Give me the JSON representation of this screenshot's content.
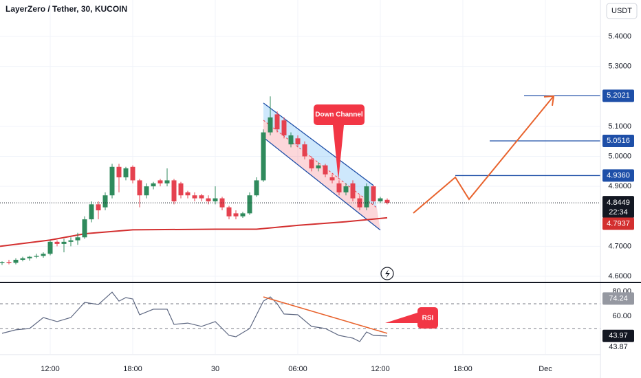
{
  "chart_data": [
    {
      "type": "candlestick",
      "title": "LayerZero / Tether, 30, KUCOIN",
      "currency": "USDT",
      "up_color": "#2f8a5c",
      "down_color": "#e5414f",
      "grid": true,
      "xlim": [
        -7.3,
        80
      ],
      "ylim": [
        4.5817,
        5.5215
      ],
      "xticks": [
        {
          "value": 0,
          "label": "12:00"
        },
        {
          "value": 12,
          "label": "18:00"
        },
        {
          "value": 24,
          "label": "30"
        },
        {
          "value": 36,
          "label": "06:00"
        },
        {
          "value": 48,
          "label": "12:00"
        },
        {
          "value": 60,
          "label": "18:00"
        },
        {
          "value": 72,
          "label": "Dec"
        }
      ],
      "yticks": [
        {
          "value": 5.4,
          "label": "5.4000"
        },
        {
          "value": 5.3,
          "label": "5.3000"
        },
        {
          "value": 5.1,
          "label": "5.1000"
        },
        {
          "value": 5.0,
          "label": "5.0000"
        },
        {
          "value": 4.9,
          "label": "4.9000"
        },
        {
          "value": 4.7,
          "label": "4.7000"
        },
        {
          "value": 4.6,
          "label": "4.6000"
        }
      ],
      "x": [
        -7,
        -6,
        -5,
        -4,
        -3,
        -2,
        -1,
        0,
        1,
        2,
        3,
        4,
        5,
        6,
        7,
        8,
        9,
        10,
        11,
        12,
        13,
        14,
        15,
        16,
        17,
        18,
        19,
        20,
        21,
        22,
        23,
        24,
        25,
        26,
        27,
        28,
        29,
        30,
        31,
        32,
        33,
        34,
        35,
        36,
        37,
        38,
        39,
        40,
        41,
        42,
        43,
        44,
        45,
        46,
        47,
        48,
        49
      ],
      "open": [
        4.645,
        4.648,
        4.645,
        4.655,
        4.66,
        4.665,
        4.668,
        4.675,
        4.715,
        4.708,
        4.715,
        4.72,
        4.73,
        4.79,
        4.84,
        4.83,
        4.87,
        4.965,
        4.93,
        4.965,
        4.92,
        4.87,
        4.9,
        4.92,
        4.91,
        4.92,
        4.91,
        4.88,
        4.87,
        4.87,
        4.86,
        4.85,
        4.86,
        4.83,
        4.81,
        4.8,
        4.81,
        4.87,
        4.92,
        5.08,
        5.14,
        5.12,
        5.04,
        5.06,
        5.04,
        4.99,
        4.96,
        4.97,
        4.93,
        4.91,
        4.88,
        4.91,
        4.86,
        4.83,
        4.9,
        4.85,
        4.855
      ],
      "high": [
        4.65,
        4.655,
        4.66,
        4.665,
        4.668,
        4.675,
        4.68,
        4.72,
        4.72,
        4.725,
        4.73,
        4.745,
        4.8,
        4.85,
        4.85,
        4.88,
        4.975,
        4.975,
        4.965,
        4.97,
        4.925,
        4.91,
        4.915,
        4.925,
        4.96,
        4.925,
        4.915,
        4.885,
        4.88,
        4.875,
        4.87,
        4.9,
        4.865,
        4.835,
        4.82,
        4.815,
        4.88,
        4.93,
        5.09,
        5.2,
        5.15,
        5.13,
        5.08,
        5.07,
        5.05,
        5.0,
        4.98,
        4.975,
        4.94,
        4.92,
        4.91,
        4.92,
        4.87,
        4.91,
        4.905,
        4.865,
        4.86
      ],
      "low": [
        4.638,
        4.64,
        4.64,
        4.65,
        4.652,
        4.66,
        4.662,
        4.67,
        4.7,
        4.68,
        4.7,
        4.705,
        4.725,
        4.78,
        4.79,
        4.82,
        4.86,
        4.88,
        4.92,
        4.91,
        4.83,
        4.86,
        4.89,
        4.9,
        4.9,
        4.84,
        4.86,
        4.86,
        4.85,
        4.85,
        4.84,
        4.84,
        4.82,
        4.79,
        4.79,
        4.795,
        4.805,
        4.865,
        4.915,
        5.07,
        5.08,
        5.06,
        5.03,
        5.03,
        4.99,
        4.95,
        4.95,
        4.93,
        4.91,
        4.87,
        4.87,
        4.85,
        4.82,
        4.82,
        4.84,
        4.845,
        4.84
      ],
      "close": [
        4.648,
        4.645,
        4.655,
        4.66,
        4.665,
        4.668,
        4.675,
        4.715,
        4.708,
        4.715,
        4.72,
        4.73,
        4.79,
        4.84,
        4.82,
        4.87,
        4.965,
        4.93,
        4.96,
        4.92,
        4.87,
        4.9,
        4.91,
        4.91,
        4.92,
        4.85,
        4.87,
        4.87,
        4.86,
        4.86,
        4.85,
        4.86,
        4.83,
        4.8,
        4.8,
        4.81,
        4.87,
        4.92,
        5.08,
        5.13,
        5.09,
        5.07,
        5.07,
        5.04,
        5.0,
        4.96,
        4.97,
        4.94,
        4.92,
        4.88,
        4.9,
        4.86,
        4.83,
        4.9,
        4.85,
        4.86,
        4.845
      ],
      "ma": {
        "color": "#d32f2f",
        "x": [
          -7.3,
          0,
          5,
          12,
          24,
          30,
          36,
          43,
          49
        ],
        "values": [
          4.7,
          4.721,
          4.742,
          4.755,
          4.757,
          4.757,
          4.77,
          4.782,
          4.795
        ]
      },
      "channel": {
        "color": "#1e4fa8",
        "upper": {
          "x": [
            31,
            47
          ],
          "values": [
            5.178,
            4.903
          ]
        },
        "lower": {
          "x": [
            31,
            48
          ],
          "values": [
            5.063,
            4.754
          ]
        }
      },
      "levels": {
        "color": "#1e4fa8",
        "x_start": [
          68.9,
          63.9,
          58.9
        ],
        "values": [
          5.2021,
          5.0516,
          4.936
        ],
        "value_labels": [
          "5.2021",
          "5.0516",
          "4.9360"
        ]
      },
      "last_price": {
        "value": 4.8449,
        "label": "4.8449",
        "countdown": "22:34"
      },
      "ma_price": {
        "value": 4.7937,
        "label": "4.7937"
      },
      "projection": {
        "color": "#e8622c",
        "x": [
          52.8,
          58.9,
          60.9,
          73.2
        ],
        "values": [
          4.811,
          4.93,
          4.857,
          5.201
        ]
      },
      "annotation": "Down Channel"
    },
    {
      "type": "line",
      "name": "RSI",
      "color": "#5c6680",
      "ylim": [
        29.4,
        86.7
      ],
      "yticks": [
        {
          "value": 80,
          "label": "80.00"
        },
        {
          "value": 60,
          "label": "60.00"
        }
      ],
      "bands": [
        70,
        50
      ],
      "x": [
        -7,
        -5,
        -3,
        -1,
        1,
        3,
        5,
        7,
        9,
        10,
        11,
        12,
        13,
        15,
        17,
        18,
        20,
        22,
        24,
        26,
        27,
        29,
        30,
        31,
        32,
        33,
        34,
        36,
        38,
        40,
        42,
        44,
        45,
        46,
        47,
        49
      ],
      "values": [
        46.1,
        48.9,
        50,
        58.9,
        55.6,
        58.9,
        71.1,
        69.4,
        79.4,
        72.2,
        75,
        73.9,
        61.1,
        65.6,
        65.6,
        53.3,
        54.4,
        51.7,
        55.6,
        44.4,
        43.3,
        50,
        61.1,
        72.2,
        75.6,
        70,
        61.7,
        61.1,
        51.7,
        50,
        44.4,
        42.2,
        39.4,
        47.2,
        44.4,
        43.9
      ],
      "tags": [
        74.24,
        43.97
      ],
      "extra_value": 43.87,
      "trendline": {
        "color": "#e8622c",
        "x": [
          31,
          49
        ],
        "values": [
          75.6,
          46.1
        ]
      },
      "annotation": "RSI"
    }
  ]
}
